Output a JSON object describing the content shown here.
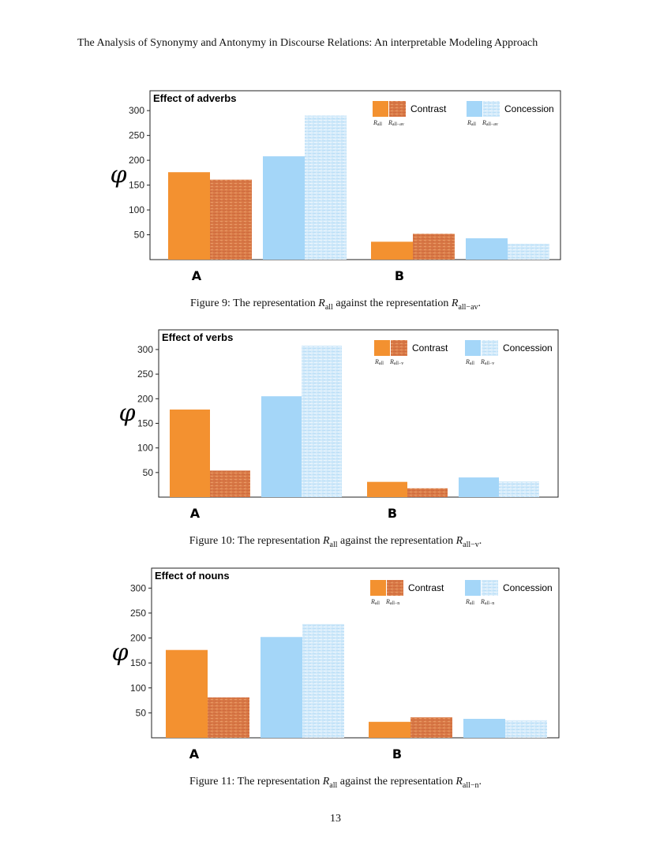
{
  "header": {
    "running_title": "The Analysis of Synonymy and Antonymy in Discourse Relations: An interpretable Modeling Approach"
  },
  "colors": {
    "contrast": "#f39130",
    "contrast_hatched": "#d97a47",
    "concession": "#a4d6f8",
    "concession_hatched": "#d2eafa"
  },
  "chart_data": [
    {
      "type": "bar",
      "title": "Effect of adverbs",
      "ylabel": "φ",
      "ylim": [
        0,
        340
      ],
      "yticks": [
        50,
        100,
        150,
        200,
        250,
        300
      ],
      "categories": [
        "A",
        "B"
      ],
      "series": [
        {
          "name": "Contrast",
          "sub": "R_all",
          "values": [
            176,
            36
          ]
        },
        {
          "name": "Contrast",
          "sub": "R_all−av",
          "values": [
            161,
            52
          ]
        },
        {
          "name": "Concession",
          "sub": "R_all",
          "values": [
            208,
            43
          ]
        },
        {
          "name": "Concession",
          "sub": "R_all−av",
          "values": [
            290,
            32
          ]
        }
      ],
      "legend": {
        "groups": [
          "Contrast",
          "Concession"
        ],
        "sub_left": "R",
        "sub_left_idx": "all",
        "sub_right": "R",
        "sub_right_idx": "all−av",
        "placement": "top-right"
      },
      "caption": {
        "prefix": "Figure 9: The representation ",
        "r1_sym": "R",
        "r1_sub": "all",
        "middle": " against the representation ",
        "r2_sym": "R",
        "r2_sub": "all−av",
        "suffix": "."
      }
    },
    {
      "type": "bar",
      "title": "Effect of verbs",
      "ylabel": "φ",
      "ylim": [
        0,
        340
      ],
      "yticks": [
        50,
        100,
        150,
        200,
        250,
        300
      ],
      "categories": [
        "A",
        "B"
      ],
      "series": [
        {
          "name": "Contrast",
          "sub": "R_all",
          "values": [
            178,
            31
          ]
        },
        {
          "name": "Contrast",
          "sub": "R_all−v",
          "values": [
            54,
            18
          ]
        },
        {
          "name": "Concession",
          "sub": "R_all",
          "values": [
            205,
            40
          ]
        },
        {
          "name": "Concession",
          "sub": "R_all−v",
          "values": [
            308,
            32
          ]
        }
      ],
      "legend": {
        "groups": [
          "Contrast",
          "Concession"
        ],
        "sub_left": "R",
        "sub_left_idx": "all",
        "sub_right": "R",
        "sub_right_idx": "all−v",
        "placement": "top-right"
      },
      "caption": {
        "prefix": "Figure 10: The representation ",
        "r1_sym": "R",
        "r1_sub": "all",
        "middle": " against the representation ",
        "r2_sym": "R",
        "r2_sub": "all−v",
        "suffix": "."
      }
    },
    {
      "type": "bar",
      "title": "Effect of nouns",
      "ylabel": "φ",
      "ylim": [
        0,
        340
      ],
      "yticks": [
        50,
        100,
        150,
        200,
        250,
        300
      ],
      "categories": [
        "A",
        "B"
      ],
      "series": [
        {
          "name": "Contrast",
          "sub": "R_all",
          "values": [
            176,
            32
          ]
        },
        {
          "name": "Contrast",
          "sub": "R_all−n",
          "values": [
            81,
            41
          ]
        },
        {
          "name": "Concession",
          "sub": "R_all",
          "values": [
            202,
            38
          ]
        },
        {
          "name": "Concession",
          "sub": "R_all−n",
          "values": [
            228,
            35
          ]
        }
      ],
      "legend": {
        "groups": [
          "Contrast",
          "Concession"
        ],
        "sub_left": "R",
        "sub_left_idx": "all",
        "sub_right": "R",
        "sub_right_idx": "all−n",
        "placement": "top-right"
      },
      "caption": {
        "prefix": "Figure 11: The representation ",
        "r1_sym": "R",
        "r1_sub": "all",
        "middle": " against the representation ",
        "r2_sym": "R",
        "r2_sub": "all−n",
        "suffix": "."
      }
    }
  ],
  "footer": {
    "page_number": "13"
  }
}
